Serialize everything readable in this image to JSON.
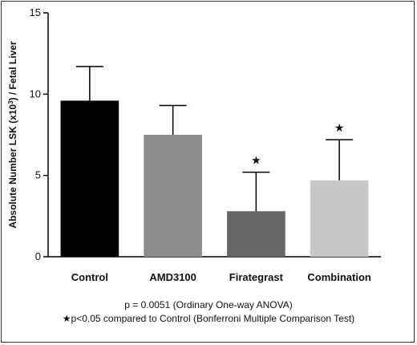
{
  "chart_data": {
    "type": "bar",
    "categories": [
      "Control",
      "AMD3100",
      "Firategrast",
      "Combination"
    ],
    "values": [
      9.6,
      7.5,
      2.8,
      4.7
    ],
    "errors": [
      2.1,
      1.8,
      2.4,
      2.5
    ],
    "significant": [
      false,
      false,
      true,
      true
    ],
    "significance_marker": "★",
    "bar_colors": [
      "#000000",
      "#8c8c8c",
      "#666666",
      "#c8c8c8"
    ],
    "title": "",
    "xlabel": "",
    "ylabel_main": "Absolute Number LSK (x10",
    "ylabel_sup": "3",
    "ylabel_rest": ") / Fetal Liver",
    "ylim": [
      0,
      15
    ],
    "yticks": [
      0,
      5,
      10,
      15
    ],
    "grid": false
  },
  "footnotes": {
    "line1": "p = 0.0051 (Ordinary One-way ANOVA)",
    "line2": "★p<0.05 compared to Control (Bonferroni Multiple Comparison Test)"
  }
}
